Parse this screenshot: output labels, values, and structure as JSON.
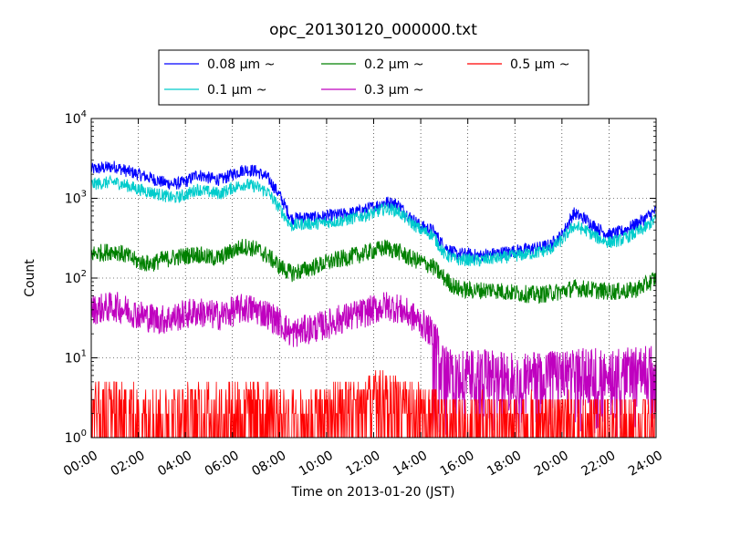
{
  "chart_data": {
    "type": "line",
    "title": "opc_20130120_000000.txt",
    "xlabel": "Time on 2013-01-20 (JST)",
    "ylabel": "Count",
    "y_scale": "log",
    "ylim": [
      1,
      10000
    ],
    "xlim": [
      "00:00",
      "24:00"
    ],
    "x_ticks": [
      "00:00",
      "02:00",
      "04:00",
      "06:00",
      "08:00",
      "10:00",
      "12:00",
      "14:00",
      "16:00",
      "18:00",
      "20:00",
      "22:00",
      "24:00"
    ],
    "y_ticks": [
      {
        "base": "10",
        "exp": "0"
      },
      {
        "base": "10",
        "exp": "1"
      },
      {
        "base": "10",
        "exp": "2"
      },
      {
        "base": "10",
        "exp": "3"
      },
      {
        "base": "10",
        "exp": "4"
      }
    ],
    "grid": true,
    "legend_position": "top-center",
    "x": [
      "00:00",
      "00:30",
      "01:00",
      "01:30",
      "02:00",
      "02:30",
      "03:00",
      "03:30",
      "04:00",
      "04:30",
      "05:00",
      "05:30",
      "06:00",
      "06:30",
      "07:00",
      "07:30",
      "08:00",
      "08:30",
      "09:00",
      "09:30",
      "10:00",
      "10:30",
      "11:00",
      "11:30",
      "12:00",
      "12:30",
      "13:00",
      "13:30",
      "14:00",
      "14:30",
      "15:00",
      "15:30",
      "16:00",
      "16:30",
      "17:00",
      "17:30",
      "18:00",
      "18:30",
      "19:00",
      "19:30",
      "20:00",
      "20:30",
      "21:00",
      "21:30",
      "22:00",
      "22:30",
      "23:00",
      "23:30",
      "24:00"
    ],
    "series": [
      {
        "name": "0.08 μm ~",
        "color": "#0000ff",
        "values": [
          2300,
          2400,
          2500,
          2200,
          2000,
          1800,
          1600,
          1500,
          1600,
          2000,
          1800,
          1700,
          2000,
          2300,
          2200,
          1800,
          1100,
          550,
          580,
          570,
          600,
          620,
          650,
          700,
          780,
          900,
          850,
          600,
          450,
          400,
          250,
          200,
          200,
          190,
          200,
          210,
          220,
          230,
          240,
          260,
          350,
          650,
          550,
          420,
          350,
          380,
          450,
          550,
          700
        ]
      },
      {
        "name": "0.1 μm ~",
        "color": "#00cccc",
        "values": [
          1500,
          1550,
          1600,
          1450,
          1300,
          1200,
          1100,
          1000,
          1100,
          1300,
          1200,
          1150,
          1350,
          1500,
          1400,
          1200,
          750,
          450,
          480,
          480,
          500,
          520,
          550,
          600,
          650,
          750,
          700,
          520,
          400,
          350,
          200,
          170,
          170,
          165,
          175,
          180,
          190,
          200,
          210,
          230,
          300,
          450,
          400,
          320,
          280,
          300,
          350,
          420,
          550
        ]
      },
      {
        "name": "0.2 μm ~",
        "color": "#008000",
        "values": [
          200,
          210,
          220,
          190,
          160,
          150,
          170,
          180,
          190,
          200,
          180,
          180,
          220,
          250,
          230,
          190,
          140,
          115,
          125,
          140,
          155,
          170,
          185,
          200,
          220,
          240,
          220,
          180,
          160,
          140,
          100,
          75,
          70,
          70,
          72,
          68,
          65,
          63,
          62,
          65,
          68,
          75,
          73,
          70,
          68,
          68,
          70,
          80,
          100
        ]
      },
      {
        "name": "0.3 μm ~",
        "color": "#bf00bf",
        "values": [
          40,
          42,
          44,
          40,
          35,
          32,
          30,
          32,
          35,
          38,
          35,
          34,
          38,
          42,
          40,
          35,
          28,
          20,
          22,
          24,
          26,
          30,
          33,
          36,
          40,
          45,
          42,
          35,
          28,
          20,
          8,
          7,
          7,
          7,
          7,
          6.5,
          6.5,
          6.5,
          7,
          7,
          7,
          7,
          7.5,
          7.5,
          7.5,
          7.5,
          7.5,
          8,
          9
        ]
      },
      {
        "name": "0.5 μm ~",
        "color": "#ff0000",
        "values": [
          2.5,
          2.5,
          2.5,
          2.2,
          2.2,
          2.2,
          2,
          2,
          2.2,
          2.2,
          2.2,
          2.2,
          2.4,
          2.5,
          2.4,
          2.2,
          1.9,
          1.8,
          1.9,
          2,
          2.1,
          2.3,
          2.5,
          2.7,
          3,
          3.2,
          3,
          2.6,
          2.2,
          2,
          1.6,
          1.6,
          1.6,
          1.6,
          1.6,
          1.6,
          1.6,
          1.6,
          1.6,
          1.6,
          1.6,
          1.6,
          1.6,
          1.6,
          1.6,
          1.6,
          1.6,
          1.6,
          1.6
        ]
      }
    ],
    "legend_entries": [
      {
        "name": "0.08 μm ~",
        "color": "#0000ff"
      },
      {
        "name": "0.1 μm ~",
        "color": "#00cccc"
      },
      {
        "name": "0.2 μm ~",
        "color": "#008000"
      },
      {
        "name": "0.3 μm ~",
        "color": "#bf00bf"
      },
      {
        "name": "0.5 μm ~",
        "color": "#ff0000"
      }
    ]
  }
}
